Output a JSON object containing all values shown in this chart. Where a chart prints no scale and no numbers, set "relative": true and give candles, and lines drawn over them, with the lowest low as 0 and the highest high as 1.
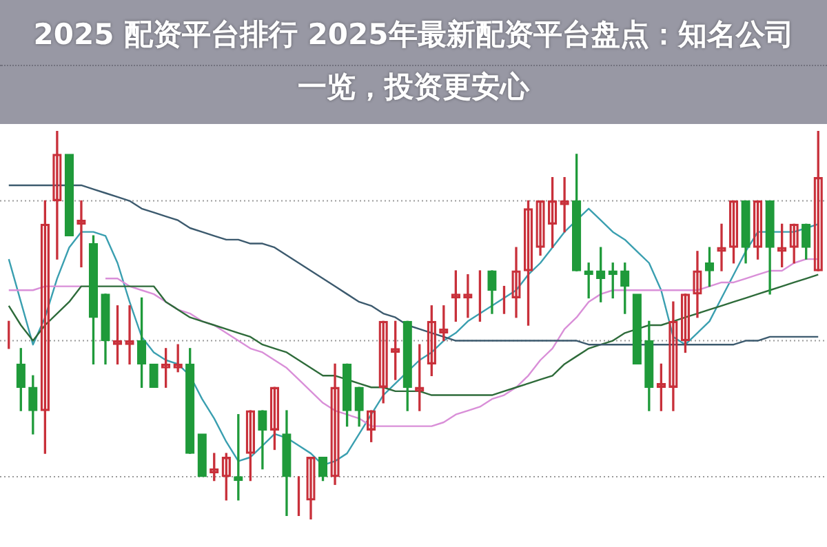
{
  "chart_data": {
    "type": "candlestick",
    "title": "2025 配资平台排行 2025年最新配资平台盘点：知名公司一览，投资更安心",
    "relative": true,
    "ref_lines": [
      {
        "axis": "y",
        "value": 0.82,
        "color": "#9a9a9a",
        "line_style": "dotted"
      },
      {
        "axis": "y",
        "value": 0.46,
        "color": "#9a9a9a",
        "line_style": "dotted"
      },
      {
        "axis": "y",
        "value": 0.11,
        "color": "#9a9a9a",
        "line_style": "dotted"
      }
    ],
    "categories": [
      null,
      null,
      null,
      null,
      null,
      null,
      null,
      null,
      null,
      null,
      null,
      null,
      null,
      null,
      null,
      null,
      null,
      null,
      null,
      null,
      null,
      null,
      null,
      null,
      null,
      null,
      null,
      null,
      null,
      null,
      null,
      null,
      null,
      null,
      null,
      null,
      null,
      null,
      null,
      null,
      null,
      null,
      null,
      null,
      null,
      null,
      null,
      null,
      null,
      null,
      null,
      null,
      null,
      null,
      null,
      null,
      null,
      null,
      null,
      null,
      null,
      null,
      null,
      null,
      null,
      null,
      null,
      null
    ],
    "ohlc": [
      [
        0.46,
        0.51,
        0.44,
        0.46
      ],
      [
        0.4,
        0.44,
        0.28,
        0.34
      ],
      [
        0.34,
        0.37,
        0.22,
        0.28
      ],
      [
        0.28,
        0.82,
        0.17,
        0.76
      ],
      [
        0.82,
        1,
        0.67,
        0.94
      ],
      [
        0.94,
        0.94,
        0.73,
        0.73
      ],
      [
        0.76,
        0.82,
        0.65,
        0.77
      ],
      [
        0.71,
        0.73,
        0.4,
        0.52
      ],
      [
        0.58,
        0.58,
        0.4,
        0.46
      ],
      [
        0.45,
        0.55,
        0.4,
        0.46
      ],
      [
        0.45,
        0.55,
        0.4,
        0.46
      ],
      [
        0.46,
        0.57,
        0.34,
        0.4
      ],
      [
        0.4,
        0.4,
        0.34,
        0.34
      ],
      [
        0.39,
        0.44,
        0.34,
        0.4
      ],
      [
        0.39,
        0.45,
        0.38,
        0.4
      ],
      [
        0.4,
        0.44,
        0.17,
        0.17
      ],
      [
        0.22,
        0.22,
        0.11,
        0.11
      ],
      [
        0.12,
        0.17,
        0.1,
        0.13
      ],
      [
        0.11,
        0.17,
        0.05,
        0.16
      ],
      [
        0.11,
        0.27,
        0.05,
        0.1
      ],
      [
        0.17,
        0.28,
        0.1,
        0.28
      ],
      [
        0.28,
        0.28,
        0.13,
        0.23
      ],
      [
        0.23,
        0.34,
        0.18,
        0.34
      ],
      [
        0.22,
        0.28,
        0.01,
        0.11
      ],
      [
        0.1,
        0.11,
        0.01,
        0.1
      ],
      [
        0.05,
        0.16,
        0,
        0.16
      ],
      [
        0.16,
        0.16,
        0.1,
        0.11
      ],
      [
        0.11,
        0.4,
        0.09,
        0.34
      ],
      [
        0.4,
        0.4,
        0.24,
        0.28
      ],
      [
        0.34,
        0.34,
        0.24,
        0.28
      ],
      [
        0.23,
        0.28,
        0.2,
        0.28
      ],
      [
        0.34,
        0.51,
        0.3,
        0.51
      ],
      [
        0.43,
        0.51,
        0.36,
        0.44
      ],
      [
        0.51,
        0.51,
        0.28,
        0.34
      ],
      [
        0.33,
        0.45,
        0.28,
        0.34
      ],
      [
        0.4,
        0.55,
        0.37,
        0.51
      ],
      [
        0.48,
        0.55,
        0.46,
        0.49
      ],
      [
        0.57,
        0.64,
        0.51,
        0.58
      ],
      [
        0.57,
        0.63,
        0.52,
        0.58
      ],
      [
        0.57,
        0.64,
        0.51,
        0.57
      ],
      [
        0.64,
        0.64,
        0.53,
        0.59
      ],
      [
        0.58,
        0.6,
        0.53,
        0.58
      ],
      [
        0.57,
        0.7,
        0.52,
        0.64
      ],
      [
        0.64,
        0.82,
        0.5,
        0.8
      ],
      [
        0.7,
        0.82,
        0.68,
        0.82
      ],
      [
        0.76,
        0.88,
        0.7,
        0.82
      ],
      [
        0.81,
        0.88,
        0.74,
        0.82
      ],
      [
        0.82,
        0.94,
        0.64,
        0.64
      ],
      [
        0.64,
        0.66,
        0.57,
        0.63
      ],
      [
        0.64,
        0.7,
        0.56,
        0.62
      ],
      [
        0.64,
        0.66,
        0.57,
        0.63
      ],
      [
        0.64,
        0.66,
        0.53,
        0.6
      ],
      [
        0.58,
        0.58,
        0.4,
        0.4
      ],
      [
        0.46,
        0.51,
        0.28,
        0.34
      ],
      [
        0.34,
        0.4,
        0.28,
        0.35
      ],
      [
        0.34,
        0.56,
        0.28,
        0.51
      ],
      [
        0.46,
        0.58,
        0.43,
        0.58
      ],
      [
        0.58,
        0.69,
        0.52,
        0.64
      ],
      [
        0.66,
        0.7,
        0.6,
        0.64
      ],
      [
        0.69,
        0.76,
        0.64,
        0.7
      ],
      [
        0.7,
        0.82,
        0.66,
        0.82
      ],
      [
        0.82,
        0.82,
        0.66,
        0.7
      ],
      [
        0.7,
        0.82,
        0.67,
        0.82
      ],
      [
        0.82,
        0.82,
        0.58,
        0.7
      ],
      [
        0.69,
        0.76,
        0.65,
        0.7
      ],
      [
        0.7,
        0.76,
        0.66,
        0.76
      ],
      [
        0.76,
        0.76,
        0.67,
        0.7
      ],
      [
        0.64,
        1,
        0.64,
        0.88
      ]
    ],
    "colors": [
      "#c8303a",
      "#1f9a3a",
      "#1f9a3a",
      "#c8303a",
      "#c8303a",
      "#1f9a3a",
      "#c8303a",
      "#1f9a3a",
      "#1f9a3a",
      "#c8303a",
      "#c8303a",
      "#1f9a3a",
      "#1f9a3a",
      "#c8303a",
      "#c8303a",
      "#1f9a3a",
      "#1f9a3a",
      "#c8303a",
      "#c8303a",
      "#1f9a3a",
      "#c8303a",
      "#1f9a3a",
      "#c8303a",
      "#1f9a3a",
      "#c8303a",
      "#c8303a",
      "#1f9a3a",
      "#c8303a",
      "#1f9a3a",
      "#1f9a3a",
      "#c8303a",
      "#c8303a",
      "#c8303a",
      "#1f9a3a",
      "#c8303a",
      "#c8303a",
      "#c8303a",
      "#c8303a",
      "#c8303a",
      "#c8303a",
      "#1f9a3a",
      "#c8303a",
      "#c8303a",
      "#c8303a",
      "#c8303a",
      "#c8303a",
      "#c8303a",
      "#1f9a3a",
      "#1f9a3a",
      "#1f9a3a",
      "#1f9a3a",
      "#1f9a3a",
      "#1f9a3a",
      "#1f9a3a",
      "#c8303a",
      "#c8303a",
      "#c8303a",
      "#c8303a",
      "#1f9a3a",
      "#c8303a",
      "#c8303a",
      "#1f9a3a",
      "#c8303a",
      "#1f9a3a",
      "#c8303a",
      "#c8303a",
      "#1f9a3a",
      "#c8303a"
    ],
    "series": [
      {
        "type": "line",
        "color": "#3c5a6e",
        "values": [
          0.86,
          0.86,
          0.86,
          0.86,
          0.86,
          0.86,
          0.86,
          0.85,
          0.84,
          0.83,
          0.82,
          0.8,
          0.79,
          0.78,
          0.77,
          0.75,
          0.74,
          0.73,
          0.72,
          0.72,
          0.71,
          0.71,
          0.7,
          0.68,
          0.66,
          0.64,
          0.62,
          0.6,
          0.58,
          0.56,
          0.55,
          0.53,
          0.52,
          0.5,
          0.49,
          0.48,
          0.47,
          0.46,
          0.46,
          0.46,
          0.46,
          0.46,
          0.46,
          0.46,
          0.46,
          0.46,
          0.46,
          0.46,
          0.45,
          0.45,
          0.45,
          0.45,
          0.45,
          0.45,
          0.45,
          0.45,
          0.45,
          0.45,
          0.45,
          0.45,
          0.45,
          0.46,
          0.46,
          0.47,
          0.47,
          0.47,
          0.47,
          0.47
        ]
      },
      {
        "type": "line",
        "color": "#2e6b3a",
        "values": [
          0.55,
          0.5,
          0.46,
          0.5,
          0.53,
          0.56,
          0.6,
          0.6,
          0.6,
          0.6,
          0.6,
          0.6,
          0.6,
          0.56,
          0.54,
          0.52,
          0.51,
          0.5,
          0.49,
          0.48,
          0.47,
          0.45,
          0.44,
          0.43,
          0.41,
          0.39,
          0.37,
          0.37,
          0.36,
          0.35,
          0.34,
          0.34,
          0.33,
          0.33,
          0.33,
          0.32,
          0.32,
          0.32,
          0.32,
          0.32,
          0.32,
          0.33,
          0.34,
          0.35,
          0.36,
          0.37,
          0.4,
          0.42,
          0.44,
          0.45,
          0.46,
          0.48,
          0.49,
          0.5,
          0.5,
          0.51,
          0.52,
          0.53,
          0.54,
          0.55,
          0.56,
          0.57,
          0.58,
          0.59,
          0.6,
          0.61,
          0.62,
          0.63
        ]
      },
      {
        "type": "line",
        "color": "#d98fd8",
        "values": [
          0.59,
          0.59,
          0.59,
          0.6,
          0.6,
          0.6,
          0.6,
          null,
          0.62,
          0.62,
          0.6,
          0.59,
          0.58,
          0.56,
          0.54,
          0.53,
          0.51,
          0.5,
          0.48,
          0.46,
          0.44,
          0.43,
          0.41,
          0.39,
          0.36,
          0.33,
          0.3,
          0.28,
          0.27,
          0.26,
          0.24,
          0.24,
          0.24,
          0.24,
          0.24,
          0.24,
          0.25,
          0.27,
          0.28,
          0.29,
          0.31,
          0.32,
          0.34,
          0.37,
          0.41,
          0.44,
          0.49,
          0.52,
          0.56,
          0.58,
          0.59,
          0.59,
          0.59,
          0.59,
          0.59,
          0.59,
          0.59,
          0.59,
          0.6,
          0.61,
          0.61,
          0.62,
          0.63,
          0.64,
          0.64,
          0.66,
          0.67,
          0.67
        ]
      },
      {
        "type": "line",
        "color": "#3a9fb0",
        "values": [
          0.67,
          0.56,
          0.45,
          0.52,
          0.62,
          0.7,
          0.74,
          0.74,
          0.73,
          0.66,
          0.56,
          0.47,
          0.43,
          0.41,
          0.4,
          0.37,
          0.31,
          0.26,
          0.2,
          0.15,
          0.16,
          0.19,
          0.22,
          0.21,
          0.19,
          0.17,
          0.14,
          0.15,
          0.17,
          0.22,
          0.27,
          0.32,
          0.35,
          0.38,
          0.41,
          0.43,
          0.46,
          0.48,
          0.51,
          0.53,
          0.55,
          0.57,
          0.59,
          0.63,
          0.66,
          0.7,
          0.74,
          0.77,
          0.8,
          0.77,
          0.74,
          0.72,
          0.69,
          0.66,
          0.59,
          0.47,
          0.45,
          0.48,
          0.51,
          0.57,
          0.63,
          0.69,
          0.74,
          0.74,
          0.74,
          0.74,
          0.75,
          0.76
        ]
      }
    ]
  }
}
